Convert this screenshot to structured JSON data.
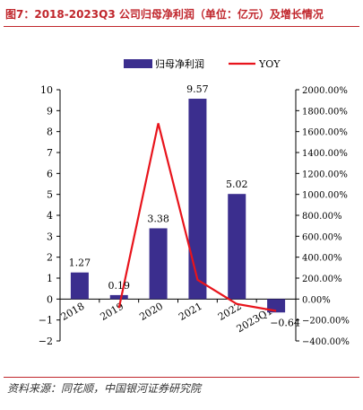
{
  "header": {
    "title": "图7：2018-2023Q3 公司归母净利润（单位：亿元）及增长情况"
  },
  "footer": {
    "source": "资料来源：同花顺，中国银河证券研究院"
  },
  "colors": {
    "bar": "#3B2E8E",
    "line": "#E8141C",
    "title": "#C0262C",
    "axis": "#000000"
  },
  "chart_data": {
    "type": "bar",
    "categories": [
      "2018",
      "2019",
      "2020",
      "2021",
      "2022",
      "2023Q1-3"
    ],
    "series": [
      {
        "name": "归母净利润",
        "type": "bar",
        "axis": "left",
        "values": [
          1.27,
          0.19,
          3.38,
          9.57,
          5.02,
          -0.64
        ],
        "labels": [
          "1.27",
          "0.19",
          "3.38",
          "9.57",
          "5.02",
          "−0.64"
        ]
      },
      {
        "name": "YOY",
        "type": "line",
        "axis": "right",
        "values": [
          null,
          -85.0,
          1679.0,
          183.1,
          -47.5,
          -112.7
        ]
      }
    ],
    "y_left": {
      "min": -2,
      "max": 10,
      "ticks": [
        "10",
        "9",
        "8",
        "7",
        "6",
        "5",
        "4",
        "3",
        "2",
        "1",
        "0",
        "−1",
        "−2"
      ]
    },
    "y_right": {
      "min": -400,
      "max": 2000,
      "ticks": [
        "2000.00%",
        "1800.00%",
        "1600.00%",
        "1400.00%",
        "1200.00%",
        "1000.00%",
        "800.00%",
        "600.00%",
        "400.00%",
        "200.00%",
        "0.00%",
        "−200.00%",
        "−400.00%"
      ]
    },
    "legend_position": "top-center",
    "grid": false
  }
}
